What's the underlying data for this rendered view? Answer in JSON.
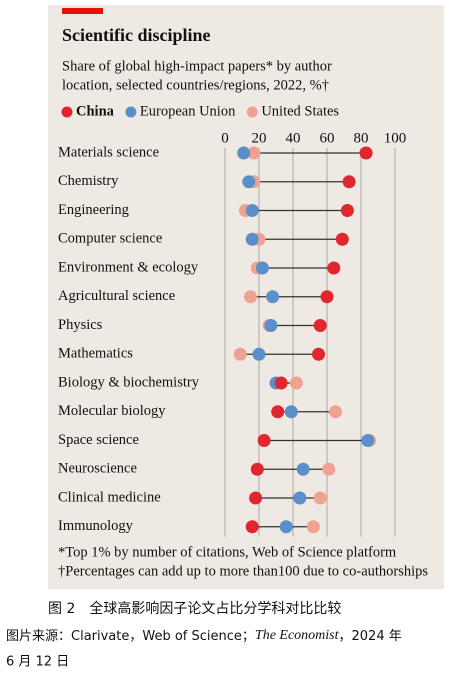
{
  "chart_data": {
    "type": "dot",
    "title": "Scientific discipline",
    "subtitle": [
      "Share of global high-impact papers* by author",
      "location, selected countries/regions, 2022, %†"
    ],
    "categories": [
      "Materials science",
      "Chemistry",
      "Engineering",
      "Computer science",
      "Environment & ecology",
      "Agricultural science",
      "Physics",
      "Mathematics",
      "Biology & biochemistry",
      "Molecular biology",
      "Space science",
      "Neuroscience",
      "Clinical medicine",
      "Immunology"
    ],
    "series": [
      {
        "name": "China",
        "color": "#e0262f",
        "values": [
          83,
          73,
          72,
          69,
          64,
          60,
          56,
          55,
          33,
          31,
          23,
          19,
          18,
          16
        ]
      },
      {
        "name": "European Union",
        "color": "#5b8fc9",
        "values": [
          11,
          14,
          16,
          16,
          22,
          28,
          27,
          20,
          30,
          39,
          84,
          46,
          44,
          36
        ]
      },
      {
        "name": "United States",
        "color": "#f0a291",
        "values": [
          17,
          17,
          12,
          20,
          19,
          15,
          26,
          9,
          42,
          65,
          85,
          61,
          56,
          52
        ]
      }
    ],
    "xlim": [
      0,
      100
    ],
    "xticks": [
      0,
      20,
      40,
      60,
      80,
      100
    ],
    "grid": true,
    "footnotes": [
      "*Top 1% by number of citations, Web of Science platform",
      "†Percentages can add up to more than100 due to co-authorships"
    ]
  },
  "caption": {
    "figure": "图 2　全球高影响因子论文占比分学科对比比较",
    "source_prefix": "图片来源：Clarivate，Web of Science；",
    "source_italic": "The Economist",
    "source_suffix": "，2024 年",
    "source_line2": "6 月 12 日"
  }
}
